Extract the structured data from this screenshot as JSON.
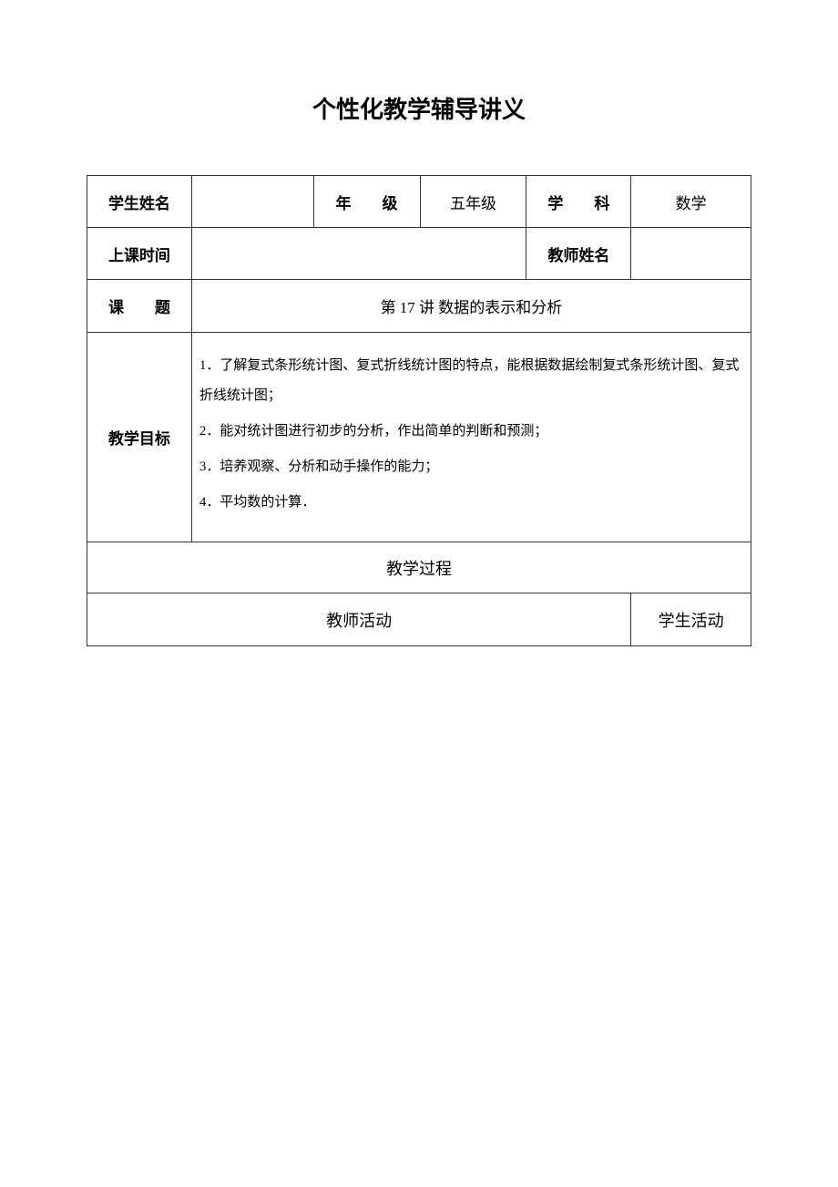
{
  "page": {
    "title": "个性化教学辅导讲义"
  },
  "table": {
    "row1": {
      "student_name_label": "学生姓名",
      "student_name_value": "",
      "grade_label": "年　　级",
      "grade_value": "五年级",
      "subject_label": "学　　科",
      "subject_value": "数学"
    },
    "row2": {
      "class_time_label": "上课时间",
      "class_time_value": "",
      "teacher_name_label": "教师姓名",
      "teacher_name_value": ""
    },
    "row3": {
      "topic_label": "课　　题",
      "topic_value": "第 17 讲  数据的表示和分析"
    },
    "row4": {
      "objectives_label": "教学目标",
      "obj1": "1．了解复式条形统计图、复式折线统计图的特点，能根据数据绘制复式条形统计图、复式折线统计图；",
      "obj2": "2．能对统计图进行初步的分析，作出简单的判断和预测；",
      "obj3": "3．培养观察、分析和动手操作的能力；",
      "obj4": "4．平均数的计算．"
    },
    "row5": {
      "process_label": "教学过程"
    },
    "row6": {
      "teacher_activity_label": "教师活动",
      "student_activity_label": "学生活动"
    }
  }
}
